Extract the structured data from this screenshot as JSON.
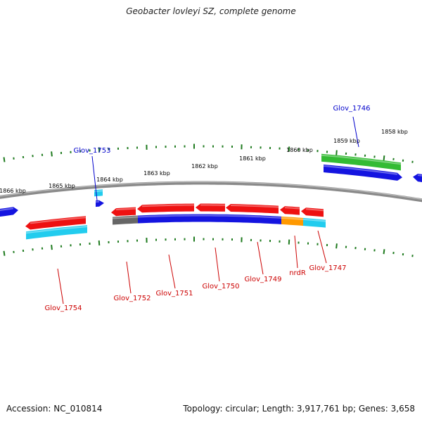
{
  "title": "Geobacter lovleyi SZ, complete genome",
  "footer": {
    "accession": "Accession: NC_010814",
    "summary": "Topology: circular; Length: 3,917,761 bp; Genes: 3,658"
  },
  "colors": {
    "backbone": "#7a7a7a",
    "tick": "#1e7a1e",
    "red": "#ee1111",
    "blue": "#1414e0",
    "cyan": "#22ccee",
    "green": "#33bb33",
    "orange": "#ff9900",
    "gray": "#666666",
    "label_red": "#cc0000",
    "label_blue": "#0000cc"
  },
  "scale_labels": [
    "1866 kbp",
    "1865 kbp",
    "1864 kbp",
    "1863 kbp",
    "1862 kbp",
    "1861 kbp",
    "1860 kbp",
    "1859 kbp",
    "1858 kbp"
  ],
  "gene_labels": [
    "Glov_1746",
    "Glov_1753",
    "Glov_1754",
    "Glov_1752",
    "Glov_1751",
    "Glov_1750",
    "Glov_1749",
    "nrdR",
    "Glov_1747"
  ]
}
